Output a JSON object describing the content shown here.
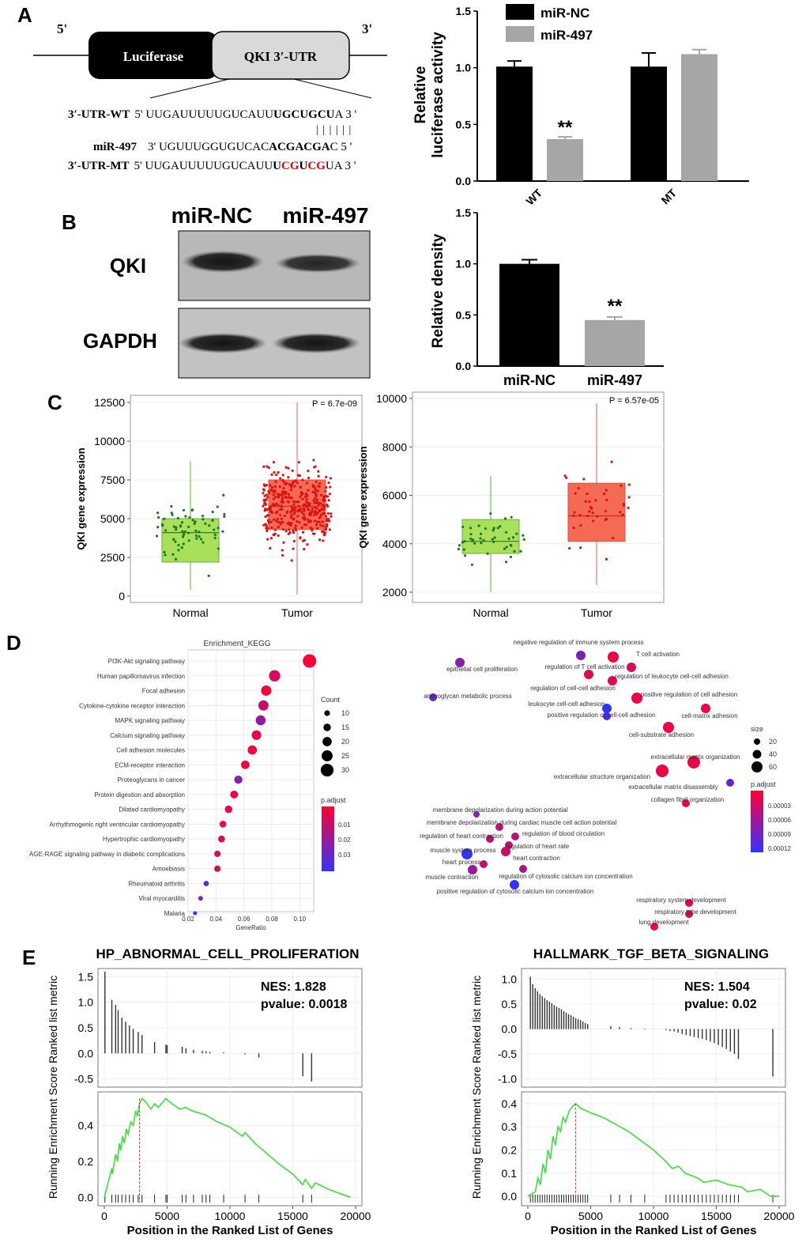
{
  "panels": {
    "a": "A",
    "b": "B",
    "c": "C",
    "d": "D",
    "e": "E"
  },
  "panel_a": {
    "prime5": "5'",
    "prime3": "3'",
    "luciferase": "Luciferase",
    "utr_box": "QKI  3′-UTR",
    "wt_label": "3′-UTR-WT",
    "wt_prefix": "5' UUGAUUUUUGUCAUU",
    "wt_bold": "UGCUGCU",
    "wt_suffix": "A 3 '",
    "pairing": "| | | | | |",
    "mir_label": "miR-497",
    "mir_prefix": "3'    UGUUUGGUGUCAC",
    "mir_bold": "ACGACGA",
    "mir_suffix": "C 5 '",
    "mt_label": "3′-UTR-MT",
    "mt_prefix": "5' UUGAUUUUUGUCAUU",
    "mt_b1": "U",
    "mt_r1": "CG",
    "mt_b2": "U",
    "mt_r2": "CG",
    "mt_suffix": "UA 3 '"
  },
  "panel_b": {
    "col1": "miR-NC",
    "col2": "miR-497",
    "row1": "QKI",
    "row2": "GAPDH"
  },
  "colors": {
    "black": "#000000",
    "grey": "#a6a6a6",
    "normal_fill": "#a8e05a",
    "normal_dot": "#1a7a1a",
    "tumor_fill": "#f46a54",
    "tumor_dot": "#e01010",
    "gsea_line": "#39e039",
    "gsea_red": "#e03030",
    "high_padj": "#ff0033",
    "low_padj": "#3333ff"
  },
  "chart_data": [
    {
      "id": "luciferase",
      "type": "bar",
      "categories": [
        "WT",
        "MT"
      ],
      "series": [
        {
          "name": "miR-NC",
          "values": [
            1.01,
            1.01
          ],
          "errors": [
            0.05,
            0.12
          ]
        },
        {
          "name": "miR-497",
          "values": [
            0.37,
            1.12
          ],
          "errors": [
            0.02,
            0.04
          ]
        }
      ],
      "ylabel": "Relative\nluciferase activity",
      "ylim": [
        0,
        1.5
      ],
      "yticks": [
        "0.0",
        "0.5",
        "1.0",
        "1.5"
      ],
      "annotation": "**",
      "legend": [
        "miR-NC",
        "miR-497"
      ]
    },
    {
      "id": "density",
      "type": "bar",
      "categories": [
        "miR-NC",
        "miR-497"
      ],
      "values": [
        1.0,
        0.45
      ],
      "errors": [
        0.04,
        0.03
      ],
      "ylabel": "Relative density",
      "ylim": [
        0,
        1.5
      ],
      "yticks": [
        "0.0",
        "0.5",
        "1.0",
        "1.5"
      ],
      "annotation": "**"
    },
    {
      "id": "box1",
      "type": "box",
      "ylabel": "QKI gene expression",
      "categories": [
        "Normal",
        "Tumor"
      ],
      "ylim": [
        0,
        12500
      ],
      "yticks": [
        "0",
        "2500",
        "5000",
        "7500",
        "10000",
        "12500"
      ],
      "boxes": [
        {
          "name": "Normal",
          "min": 400,
          "q1": 2200,
          "median": 4100,
          "q3": 5000,
          "max": 8700
        },
        {
          "name": "Tumor",
          "min": 100,
          "q1": 4300,
          "median": 5800,
          "q3": 7500,
          "max": 12500
        }
      ],
      "pvalue": "P = 6.7e-09"
    },
    {
      "id": "box2",
      "type": "box",
      "ylabel": "QKI gene expression",
      "categories": [
        "Normal",
        "Tumor"
      ],
      "ylim": [
        2000,
        10000
      ],
      "yticks": [
        "2000",
        "4000",
        "6000",
        "8000",
        "10000"
      ],
      "boxes": [
        {
          "name": "Normal",
          "min": 2000,
          "q1": 3600,
          "median": 4100,
          "q3": 5000,
          "max": 6800
        },
        {
          "name": "Tumor",
          "min": 2300,
          "q1": 4100,
          "median": 5150,
          "q3": 6500,
          "max": 9800
        }
      ],
      "pvalue": "P = 6.57e-05"
    },
    {
      "id": "kegg",
      "type": "scatter",
      "title": "Enrichment_KEGG",
      "xlabel": "GeneRatio",
      "xlim": [
        0.02,
        0.11
      ],
      "xticks": [
        "0.02",
        "0.04",
        "0.06",
        "0.08",
        "0.10"
      ],
      "pathways": [
        {
          "name": "PI3K-Akt signaling pathway",
          "ratio": 0.107,
          "count": 32,
          "padj": 0.001
        },
        {
          "name": "Human papillomavirus infection",
          "ratio": 0.082,
          "count": 26,
          "padj": 0.008
        },
        {
          "name": "Focal adhesion",
          "ratio": 0.076,
          "count": 23,
          "padj": 0.002
        },
        {
          "name": "Cytokine-cytokine receptor interaction",
          "ratio": 0.074,
          "count": 23,
          "padj": 0.011
        },
        {
          "name": "MAPK signaling pathway",
          "ratio": 0.072,
          "count": 22,
          "padj": 0.021
        },
        {
          "name": "Calcium signaling pathway",
          "ratio": 0.069,
          "count": 21,
          "padj": 0.004
        },
        {
          "name": "Cell adhesion molecules",
          "ratio": 0.066,
          "count": 20,
          "padj": 0.003
        },
        {
          "name": "ECM-receptor interaction",
          "ratio": 0.061,
          "count": 18,
          "padj": 0.002
        },
        {
          "name": "Proteoglycans in cancer",
          "ratio": 0.056,
          "count": 17,
          "padj": 0.024
        },
        {
          "name": "Protein digestion and absorption",
          "ratio": 0.053,
          "count": 16,
          "padj": 0.003
        },
        {
          "name": "Dilated cardiomyopathy",
          "ratio": 0.049,
          "count": 15,
          "padj": 0.004
        },
        {
          "name": "Arrhythmogenic right ventricular cardiomyopathy",
          "ratio": 0.045,
          "count": 13,
          "padj": 0.003
        },
        {
          "name": "Hypertrophic cardiomyopathy",
          "ratio": 0.044,
          "count": 13,
          "padj": 0.005
        },
        {
          "name": "AGE-RAGE signaling pathway in diabetic complications",
          "ratio": 0.041,
          "count": 12,
          "padj": 0.007
        },
        {
          "name": "Amoebiasis",
          "ratio": 0.041,
          "count": 12,
          "padj": 0.005
        },
        {
          "name": "Rheumatoid arthritis",
          "ratio": 0.033,
          "count": 9,
          "padj": 0.035
        },
        {
          "name": "Viral myocarditis",
          "ratio": 0.029,
          "count": 7,
          "padj": 0.026
        },
        {
          "name": "Malaria",
          "ratio": 0.025,
          "count": 5,
          "padj": 0.038
        }
      ],
      "count_legend": {
        "title": "Count",
        "values": [
          "10",
          "15",
          "20",
          "25",
          "30"
        ]
      },
      "padj_legend": {
        "title": "p.adjust",
        "ticks": [
          "0.01",
          "0.02",
          "0.03"
        ]
      }
    },
    {
      "id": "go_network",
      "type": "network",
      "nodes": [
        {
          "label": "negative regulation of immune system process",
          "padj": 8e-05
        },
        {
          "label": "T cell activation",
          "padj": 1e-05
        },
        {
          "label": "epithelial cell proliferation",
          "padj": 7e-05
        },
        {
          "label": "regulation of T cell activation",
          "padj": 2e-05
        },
        {
          "label": "regulation of leukocyte cell-cell adhesion",
          "padj": 2e-05
        },
        {
          "label": "regulation of cell-cell adhesion",
          "padj": 2e-05
        },
        {
          "label": "aminoglycan metabolic process",
          "padj": 9e-05
        },
        {
          "label": "positive regulation of cell adhesion",
          "padj": 1e-05
        },
        {
          "label": "leukocyte cell-cell adhesion",
          "padj": 0.00012
        },
        {
          "label": "cell-matrix adhesion",
          "padj": 1e-05
        },
        {
          "label": "positive regulation of cell-cell adhesion",
          "padj": 0.00011
        },
        {
          "label": "cell-substrate adhesion",
          "padj": 1e-05
        },
        {
          "label": "extracellular matrix organization",
          "padj": 1e-05
        },
        {
          "label": "extracellular structure organization",
          "padj": 1e-05
        },
        {
          "label": "extracellular matrix disassembly",
          "padj": 9e-05
        },
        {
          "label": "collagen fibril organization",
          "padj": 1e-05
        },
        {
          "label": "membrane depolarization during action potential",
          "padj": 7e-05
        },
        {
          "label": "membrane depolarization during cardiac muscle cell action potential",
          "padj": 4e-05
        },
        {
          "label": "regulation of heart contraction",
          "padj": 4e-05
        },
        {
          "label": "regulation of blood circulation",
          "padj": 4e-05
        },
        {
          "label": "regulation of heart rate",
          "padj": 3e-05
        },
        {
          "label": "muscle system process",
          "padj": 0.00012
        },
        {
          "label": "heart process",
          "padj": 3e-05
        },
        {
          "label": "heart contraction",
          "padj": 3e-05
        },
        {
          "label": "muscle contraction",
          "padj": 6e-05
        },
        {
          "label": "regulation of cytosolic calcium ion concentration",
          "padj": 5e-05
        },
        {
          "label": "positive regulation of cytosolic calcium ion concentration",
          "padj": 0.00012
        },
        {
          "label": "respiratory system development",
          "padj": 2e-05
        },
        {
          "label": "respiratory tube development",
          "padj": 2e-05
        },
        {
          "label": "lung development",
          "padj": 1e-05
        }
      ],
      "size_legend": {
        "title": "size",
        "values": [
          "20",
          "40",
          "60"
        ]
      },
      "padj_legend": {
        "title": "p.adjust",
        "ticks": [
          "0.00003",
          "0.00006",
          "0.00009",
          "0.00012"
        ]
      }
    },
    {
      "id": "gsea1",
      "type": "line",
      "title": "HP_ABNORMAL_CELL_PROLIFERATION",
      "nes": "NES: 1.828",
      "pvalue": "pvalue: 0.0018",
      "top_ylabel": "Ranked list metric",
      "bottom_ylabel": "Running Enrichment Score",
      "xlabel": "Position in the Ranked List of Genes",
      "top_ylim": [
        -0.6,
        1.6
      ],
      "top_yticks": [
        "-0.5",
        "0.0",
        "0.5",
        "1.0",
        "1.5"
      ],
      "bottom_ylim": [
        -0.02,
        0.56
      ],
      "bottom_yticks": [
        "0.0",
        "0.2",
        "0.4"
      ],
      "xlim": [
        0,
        20000
      ],
      "xticks": [
        "0",
        "5000",
        "10000",
        "15000",
        "20000"
      ],
      "peak_x": 2800
    },
    {
      "id": "gsea2",
      "type": "line",
      "title": "HALLMARK_TGF_BETA_SIGNALING",
      "nes": "NES: 1.504",
      "pvalue": "pvalue: 0.02",
      "top_ylabel": "Ranked list metric",
      "bottom_ylabel": "Running Enrichment Score",
      "xlabel": "Position in the Ranked List of Genes",
      "top_ylim": [
        -1.1,
        1.15
      ],
      "top_yticks": [
        "-1.0",
        "-0.5",
        "0.0",
        "0.5",
        "1.0"
      ],
      "bottom_ylim": [
        -0.02,
        0.43
      ],
      "bottom_yticks": [
        "0.0",
        "0.1",
        "0.2",
        "0.3",
        "0.4"
      ],
      "xlim": [
        0,
        20000
      ],
      "xticks": [
        "0",
        "5000",
        "10000",
        "15000",
        "20000"
      ],
      "peak_x": 3800
    }
  ]
}
